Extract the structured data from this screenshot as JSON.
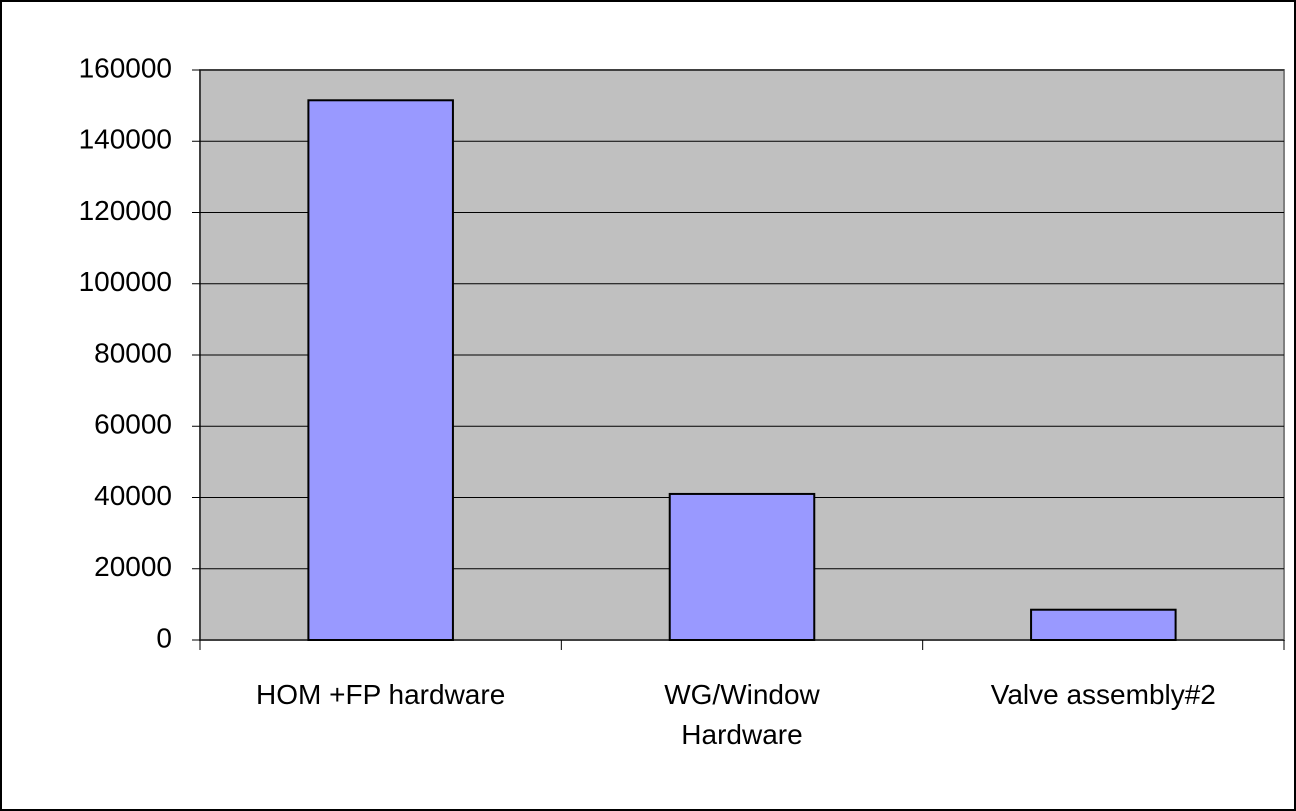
{
  "chart_data": {
    "type": "bar",
    "categories": [
      "HOM +FP hardware",
      "WG/Window Hardware",
      "Valve assembly#2"
    ],
    "values": [
      151500,
      41000,
      8500
    ],
    "color": "#9999ff",
    "ylim": [
      0,
      160000
    ],
    "yticks": [
      0,
      20000,
      40000,
      60000,
      80000,
      100000,
      120000,
      140000,
      160000
    ],
    "grid": true
  }
}
